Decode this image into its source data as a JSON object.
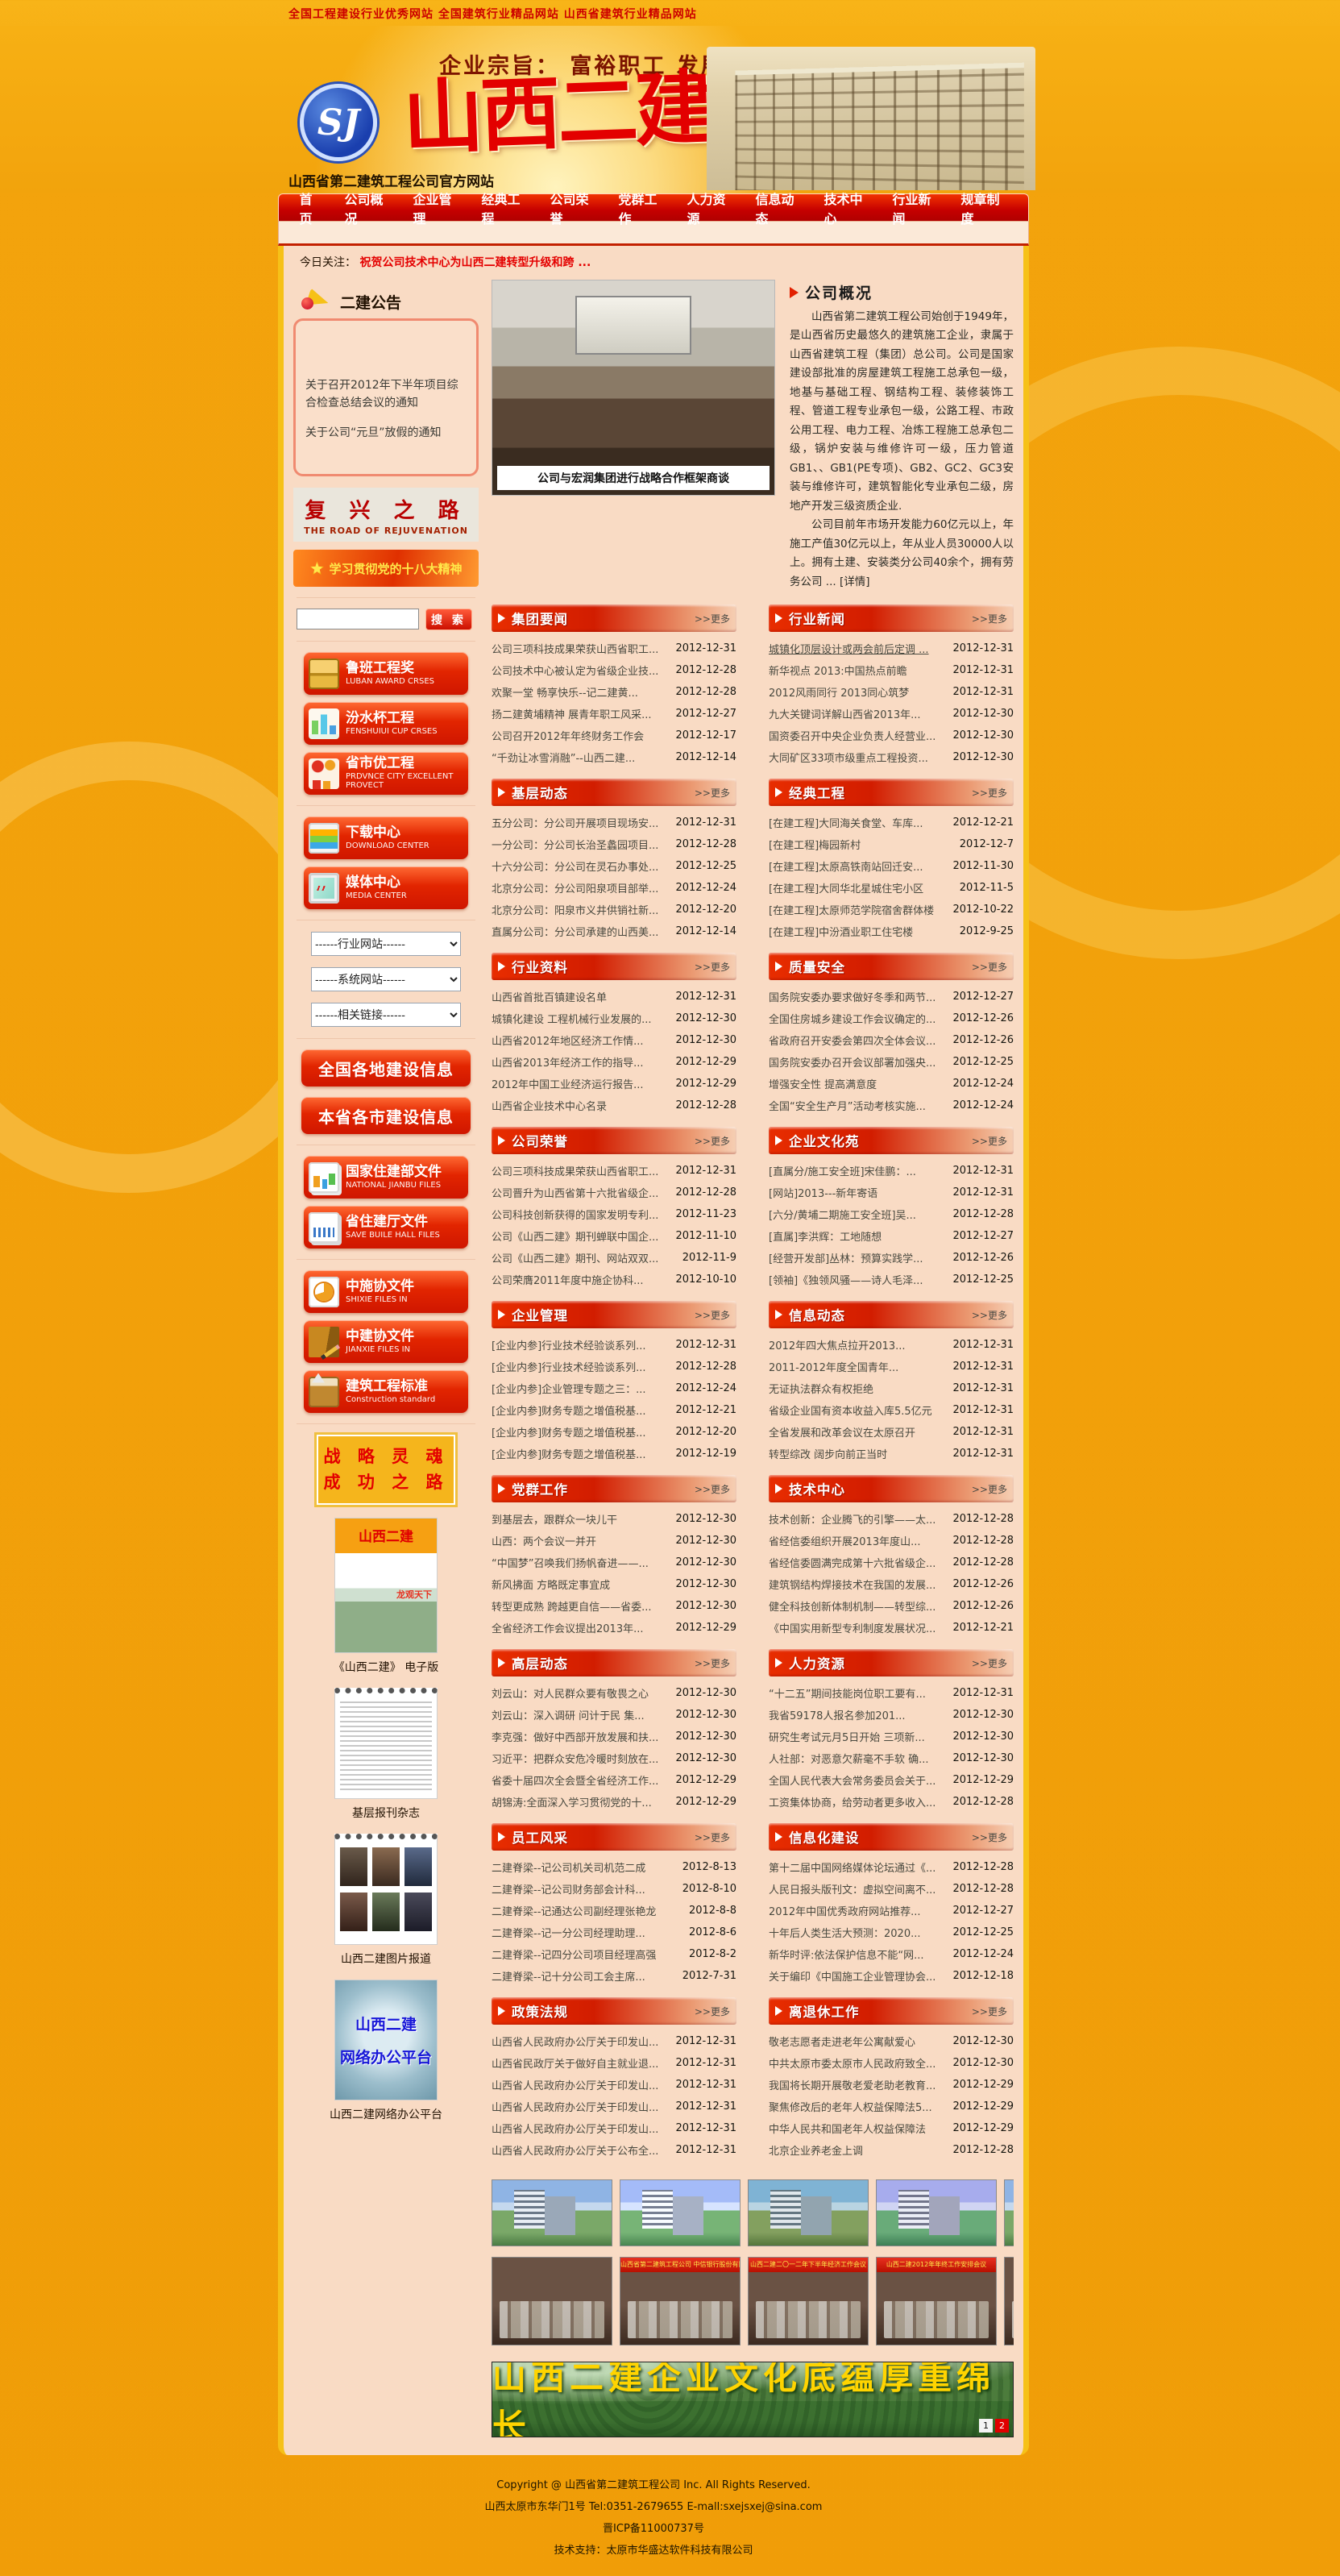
{
  "top_links": "全国工程建设行业优秀网站 全国建筑行业精品网站 山西省建筑行业精品网站",
  "header": {
    "slogan": "企业宗旨： 富裕职工 发展企业 贡献社会",
    "logo_badge": "SJ",
    "logo_text": "山西二建",
    "site_subtitle": "山西省第二建筑工程公司官方网站"
  },
  "nav": [
    "首页",
    "公司概况",
    "企业管理",
    "经典工程",
    "公司荣誉",
    "党群工作",
    "人力资源",
    "信息动态",
    "技术中心",
    "行业新闻",
    "规章制度"
  ],
  "today": {
    "label": "今日关注：",
    "headline": "祝贺公司技术中心为山西二建转型升级和跨 ..."
  },
  "sidebar": {
    "notice_title": "二建公告",
    "notices": [
      "关于召开2012年下半年项目综合检查总结会议的通知",
      "关于公司“元旦”放假的通知"
    ],
    "banner1": {
      "cn": "复 兴 之 路",
      "en": "THE ROAD OF REJUVENATION"
    },
    "banner2": "学习贯彻党的十八大精神",
    "search": {
      "placeholder": "",
      "button": "搜 索"
    },
    "award_buttons": [
      {
        "cn": "鲁班工程奖",
        "en": "LUBAN AWARD CRSES",
        "icon": "gift-boxes"
      },
      {
        "cn": "汾水杯工程",
        "en": "FENSHUIUI CUP CRSES",
        "icon": "bar-chart"
      },
      {
        "cn": "省市优工程",
        "en": "PRDVNCE CITY EXCELLENT PROVECT",
        "icon": "people"
      },
      {
        "cn": "下载中心",
        "en": "DOWNLOAD CENTER",
        "icon": "folders"
      },
      {
        "cn": "媒体中心",
        "en": "MEDIA CENTER",
        "icon": "monitor"
      }
    ],
    "selects": [
      "------行业网站------",
      "------系统网站------",
      "------相关链接------"
    ],
    "big_buttons": [
      "全国各地建设信息",
      "本省各市建设信息"
    ],
    "file_buttons": [
      {
        "cn": "国家住建部文件",
        "en": "NATIONAL JIANBU FILES",
        "icon": "doc-chart"
      },
      {
        "cn": "省住建厅文件",
        "en": "SAVE BUILE HALL FILES",
        "icon": "doc-stack"
      },
      {
        "cn": "中施协文件",
        "en": "SHIXIE FILES IN",
        "icon": "doc-pie"
      },
      {
        "cn": "中建协文件",
        "en": "JIANXIE  FILES  IN",
        "icon": "book-pencil"
      },
      {
        "cn": "建筑工程标准",
        "en": "Construction standard",
        "icon": "toolbox"
      }
    ],
    "slogan_box": [
      "战 略 灵 魂",
      "成 功 之 路"
    ],
    "media_items": [
      {
        "type": "magazine",
        "caption": "《山西二建》 电子版"
      },
      {
        "type": "newspaper",
        "caption": "基层报刊杂志"
      },
      {
        "type": "photos",
        "caption": "山西二建图片报道"
      },
      {
        "type": "oa",
        "overlay": [
          "山西二建",
          "网络办公平台"
        ],
        "caption": "山西二建网络办公平台"
      }
    ]
  },
  "main": {
    "photo_caption": "公司与宏润集团进行战略合作框架商谈",
    "about": {
      "title": "公司概况",
      "p1": "山西省第二建筑工程公司始创于1949年，是山西省历史最悠久的建筑施工企业，隶属于山西省建筑工程（集团）总公司。公司是国家建设部批准的房屋建筑工程施工总承包一级，地基与基础工程、钢结构工程、装修装饰工程、管道工程专业承包一级，公路工程、市政公用工程、电力工程、冶炼工程施工总承包二级，锅炉安装与维修许可一级，压力管道GB1、、GB1(PE专项)、GB2、GC2、GC3安装与维修许可，建筑智能化专业承包二级，房地产开发三级资质企业.",
      "p2": "公司目前年市场开发能力60亿元以上，年施工产值30亿元以上，年从业人员30000人以上。拥有土建、安装类分公司40余个，拥有劳务公司 ... [详情]"
    },
    "more_label": ">>更多",
    "sections": [
      {
        "title": "集团要闻",
        "items": [
          {
            "t": "公司三项科技成果荣获山西省职工...",
            "d": "2012-12-31"
          },
          {
            "t": "公司技术中心被认定为省级企业技...",
            "d": "2012-12-28"
          },
          {
            "t": "欢聚一堂 畅享快乐--记二建黄...",
            "d": "2012-12-28"
          },
          {
            "t": "扬二建黄埔精神 展青年职工风采...",
            "d": "2012-12-27"
          },
          {
            "t": "公司召开2012年年终财务工作会",
            "d": "2012-12-17"
          },
          {
            "t": "“千劲让冰雪消融”--山西二建...",
            "d": "2012-12-14"
          }
        ]
      },
      {
        "title": "行业新闻",
        "items": [
          {
            "t": "城镇化顶层设计或两会前后定调 ...",
            "d": "2012-12-31",
            "u": true
          },
          {
            "t": "新华视点 2013:中国热点前瞻",
            "d": "2012-12-31"
          },
          {
            "t": "2012风雨同行 2013同心筑梦",
            "d": "2012-12-31"
          },
          {
            "t": "九大关键词详解山西省2013年...",
            "d": "2012-12-30"
          },
          {
            "t": "国资委召开中央企业负责人经营业...",
            "d": "2012-12-30"
          },
          {
            "t": "大同矿区33项市级重点工程投资...",
            "d": "2012-12-30"
          }
        ]
      },
      {
        "title": "基层动态",
        "items": [
          {
            "t": "五分公司：分公司开展项目现场安...",
            "d": "2012-12-31"
          },
          {
            "t": "一分公司：分公司长治圣蠡园项目...",
            "d": "2012-12-28"
          },
          {
            "t": "十六分公司：分公司在灵石办事处...",
            "d": "2012-12-25"
          },
          {
            "t": "北京分公司：分公司阳泉项目部举...",
            "d": "2012-12-24"
          },
          {
            "t": "北京分公司：阳泉市义井供销社新...",
            "d": "2012-12-20"
          },
          {
            "t": "直属分公司：分公司承建的山西美...",
            "d": "2012-12-14"
          }
        ]
      },
      {
        "title": "经典工程",
        "items": [
          {
            "t": "[在建工程]大同海关食堂、车库...",
            "d": "2012-12-21"
          },
          {
            "t": "[在建工程]梅园新村",
            "d": "2012-12-7"
          },
          {
            "t": "[在建工程]太原高铁南站回迁安...",
            "d": "2012-11-30"
          },
          {
            "t": "[在建工程]大同华北星城住宅小区",
            "d": "2012-11-5"
          },
          {
            "t": "[在建工程]太原师范学院宿舍群体楼",
            "d": "2012-10-22"
          },
          {
            "t": "[在建工程]中汾酒业职工住宅楼",
            "d": "2012-9-25"
          }
        ]
      },
      {
        "title": "行业资料",
        "items": [
          {
            "t": "山西省首批百镇建设名单",
            "d": "2012-12-31"
          },
          {
            "t": "城镇化建设 工程机械行业发展的...",
            "d": "2012-12-30"
          },
          {
            "t": "山西省2012年地区经济工作情...",
            "d": "2012-12-30"
          },
          {
            "t": "山西省2013年经济工作的指导...",
            "d": "2012-12-29"
          },
          {
            "t": "2012年中国工业经济运行报告...",
            "d": "2012-12-29"
          },
          {
            "t": "山西省企业技术中心名录",
            "d": "2012-12-28"
          }
        ]
      },
      {
        "title": "质量安全",
        "items": [
          {
            "t": "国务院安委办要求做好冬季和两节...",
            "d": "2012-12-27"
          },
          {
            "t": "全国住房城乡建设工作会议确定的...",
            "d": "2012-12-26"
          },
          {
            "t": "省政府召开安委会第四次全体会议...",
            "d": "2012-12-26"
          },
          {
            "t": "国务院安委办召开会议部署加强央...",
            "d": "2012-12-25"
          },
          {
            "t": "增强安全性 提高满意度",
            "d": "2012-12-24"
          },
          {
            "t": "全国“安全生产月”活动考核实施...",
            "d": "2012-12-24"
          }
        ]
      },
      {
        "title": "公司荣誉",
        "items": [
          {
            "t": "公司三项科技成果荣获山西省职工...",
            "d": "2012-12-31"
          },
          {
            "t": "公司晋升为山西省第十六批省级企...",
            "d": "2012-12-28"
          },
          {
            "t": "公司科技创新获得的国家发明专利...",
            "d": "2012-11-23"
          },
          {
            "t": "公司《山西二建》期刊蝉联中国企...",
            "d": "2012-11-10"
          },
          {
            "t": "公司《山西二建》期刊、网站双双...",
            "d": "2012-11-9"
          },
          {
            "t": "公司荣膺2011年度中施企协科...",
            "d": "2012-10-10"
          }
        ]
      },
      {
        "title": "企业文化苑",
        "items": [
          {
            "t": "[直属分/施工安全班]宋佳鹏：...",
            "d": "2012-12-31"
          },
          {
            "t": "[网站]2013---新年寄语",
            "d": "2012-12-31"
          },
          {
            "t": "[六分/黄埔二期施工安全班]吴...",
            "d": "2012-12-28"
          },
          {
            "t": "[直属]李洪辉：工地随想",
            "d": "2012-12-27"
          },
          {
            "t": "[经营开发部]丛林：预算实践学...",
            "d": "2012-12-26"
          },
          {
            "t": "[领袖]《独领风骚——诗人毛泽...",
            "d": "2012-12-25"
          }
        ]
      },
      {
        "title": "企业管理",
        "items": [
          {
            "t": "[企业内参]行业技术经验谈系列...",
            "d": "2012-12-31"
          },
          {
            "t": "[企业内参]行业技术经验谈系列...",
            "d": "2012-12-28"
          },
          {
            "t": "[企业内参]企业管理专题之三：...",
            "d": "2012-12-24"
          },
          {
            "t": "[企业内参]财务专题之增值税基...",
            "d": "2012-12-21"
          },
          {
            "t": "[企业内参]财务专题之增值税基...",
            "d": "2012-12-20"
          },
          {
            "t": "[企业内参]财务专题之增值税基...",
            "d": "2012-12-19"
          }
        ]
      },
      {
        "title": "信息动态",
        "items": [
          {
            "t": "2012年四大焦点拉开2013...",
            "d": "2012-12-31"
          },
          {
            "t": "2011-2012年度全国青年...",
            "d": "2012-12-31"
          },
          {
            "t": "无证执法群众有权拒绝",
            "d": "2012-12-31"
          },
          {
            "t": "省级企业国有资本收益入库5.5亿元",
            "d": "2012-12-31"
          },
          {
            "t": "全省发展和改革会议在太原召开",
            "d": "2012-12-31"
          },
          {
            "t": "转型综改 阔步向前正当时",
            "d": "2012-12-31"
          }
        ]
      },
      {
        "title": "党群工作",
        "items": [
          {
            "t": "到基层去，跟群众一块儿干",
            "d": "2012-12-30"
          },
          {
            "t": "山西：两个会议一并开",
            "d": "2012-12-30"
          },
          {
            "t": "“中国梦”召唤我们扬帆奋进——...",
            "d": "2012-12-30"
          },
          {
            "t": "新风拂面 方略既定事宜成",
            "d": "2012-12-30"
          },
          {
            "t": "转型更成熟 跨越更自信——省委...",
            "d": "2012-12-30"
          },
          {
            "t": "全省经济工作会议提出2013年...",
            "d": "2012-12-29"
          }
        ]
      },
      {
        "title": "技术中心",
        "items": [
          {
            "t": "技术创新：企业腾飞的引擎——太...",
            "d": "2012-12-28"
          },
          {
            "t": "省经信委组织开展2013年度山...",
            "d": "2012-12-28"
          },
          {
            "t": "省经信委圆满完成第十六批省级企...",
            "d": "2012-12-28"
          },
          {
            "t": "建筑钢结构焊接技术在我国的发展...",
            "d": "2012-12-26"
          },
          {
            "t": "健全科技创新体制机制——转型综...",
            "d": "2012-12-26"
          },
          {
            "t": "《中国实用新型专利制度发展状况...",
            "d": "2012-12-21"
          }
        ]
      },
      {
        "title": "高层动态",
        "items": [
          {
            "t": "刘云山：对人民群众要有敬畏之心",
            "d": "2012-12-30"
          },
          {
            "t": "刘云山：深入调研 问计于民 集...",
            "d": "2012-12-30"
          },
          {
            "t": "李克强：做好中西部开放发展和扶...",
            "d": "2012-12-30"
          },
          {
            "t": "习近平：把群众安危冷暖时刻放在...",
            "d": "2012-12-30"
          },
          {
            "t": "省委十届四次全会暨全省经济工作...",
            "d": "2012-12-29"
          },
          {
            "t": "胡锦涛:全面深入学习贯彻党的十...",
            "d": "2012-12-29"
          }
        ]
      },
      {
        "title": "人力资源",
        "items": [
          {
            "t": "“十二五”期间技能岗位职工要有...",
            "d": "2012-12-31"
          },
          {
            "t": "我省59178人报名参加201...",
            "d": "2012-12-30"
          },
          {
            "t": "研究生考试元月5日开始 三项新...",
            "d": "2012-12-30"
          },
          {
            "t": "人社部：对恶意欠薪毫不手软 确...",
            "d": "2012-12-30"
          },
          {
            "t": "全国人民代表大会常务委员会关于...",
            "d": "2012-12-29"
          },
          {
            "t": "工资集体协商，给劳动者更多收入...",
            "d": "2012-12-28"
          }
        ]
      },
      {
        "title": "员工风采",
        "items": [
          {
            "t": "二建脊梁--记公司机关司机范二成",
            "d": "2012-8-13"
          },
          {
            "t": "二建脊梁--记公司财务部会计科...",
            "d": "2012-8-10"
          },
          {
            "t": "二建脊梁--记通达公司副经理张艳龙",
            "d": "2012-8-8"
          },
          {
            "t": "二建脊梁--记一分公司经理助理...",
            "d": "2012-8-6"
          },
          {
            "t": "二建脊梁--记四分公司项目经理高强",
            "d": "2012-8-2"
          },
          {
            "t": "二建脊梁--记十分公司工会主席...",
            "d": "2012-7-31"
          }
        ]
      },
      {
        "title": "信息化建设",
        "items": [
          {
            "t": "第十二届中国网络媒体论坛通过《...",
            "d": "2012-12-28"
          },
          {
            "t": "人民日报头版刊文：虚拟空间离不...",
            "d": "2012-12-28"
          },
          {
            "t": "2012年中国优秀政府网站推荐...",
            "d": "2012-12-27"
          },
          {
            "t": "十年后人类生活大预测：2020...",
            "d": "2012-12-25"
          },
          {
            "t": "新华时评:依法保护信息不能“网...",
            "d": "2012-12-24"
          },
          {
            "t": "关于编印《中国施工企业管理协会...",
            "d": "2012-12-18"
          }
        ]
      },
      {
        "title": "政策法规",
        "items": [
          {
            "t": "山西省人民政府办公厅关于印发山...",
            "d": "2012-12-31"
          },
          {
            "t": "山西省民政厅关于做好自主就业退...",
            "d": "2012-12-31"
          },
          {
            "t": "山西省人民政府办公厅关于印发山...",
            "d": "2012-12-31"
          },
          {
            "t": "山西省人民政府办公厅关于印发山...",
            "d": "2012-12-31"
          },
          {
            "t": "山西省人民政府办公厅关于印发山...",
            "d": "2012-12-31"
          },
          {
            "t": "山西省人民政府办公厅关于公布全...",
            "d": "2012-12-31"
          }
        ]
      },
      {
        "title": "离退休工作",
        "items": [
          {
            "t": "敬老志愿者走进老年公寓献爱心",
            "d": "2012-12-30"
          },
          {
            "t": "中共太原市委太原市人民政府致全...",
            "d": "2012-12-30"
          },
          {
            "t": "我国将长期开展敬老爱老助老教育...",
            "d": "2012-12-29"
          },
          {
            "t": "聚焦修改后的老年人权益保障法5...",
            "d": "2012-12-29"
          },
          {
            "t": "中华人民共和国老年人权益保障法",
            "d": "2012-12-29"
          },
          {
            "t": "北京企业养老金上调",
            "d": "2012-12-28"
          }
        ]
      }
    ]
  },
  "gallery": {
    "row1_count": 5,
    "row2_banners": [
      "",
      "山西省第二建筑工程公司 中信银行股份有限公司太原分行 签约仪式",
      "山西二建二〇一二年下半年经济工作会议",
      "山西二建2012年年终工作安排会议",
      ""
    ]
  },
  "bottom_banner": {
    "text": "山西二建企业文化底蕴厚重绵长",
    "pages": [
      "1",
      "2"
    ],
    "active_page": "2"
  },
  "footer": {
    "line1": "Copyright @ 山西省第二建筑工程公司  Inc. All Rights Reserved.",
    "line2": "山西太原市东华门1号  Tel:0351-2679655  E-mall:sxejsxej@sina.com",
    "line3": "晋ICP备11000737号",
    "line4": "技术支持：太原市华盛达软件科技有限公司"
  }
}
